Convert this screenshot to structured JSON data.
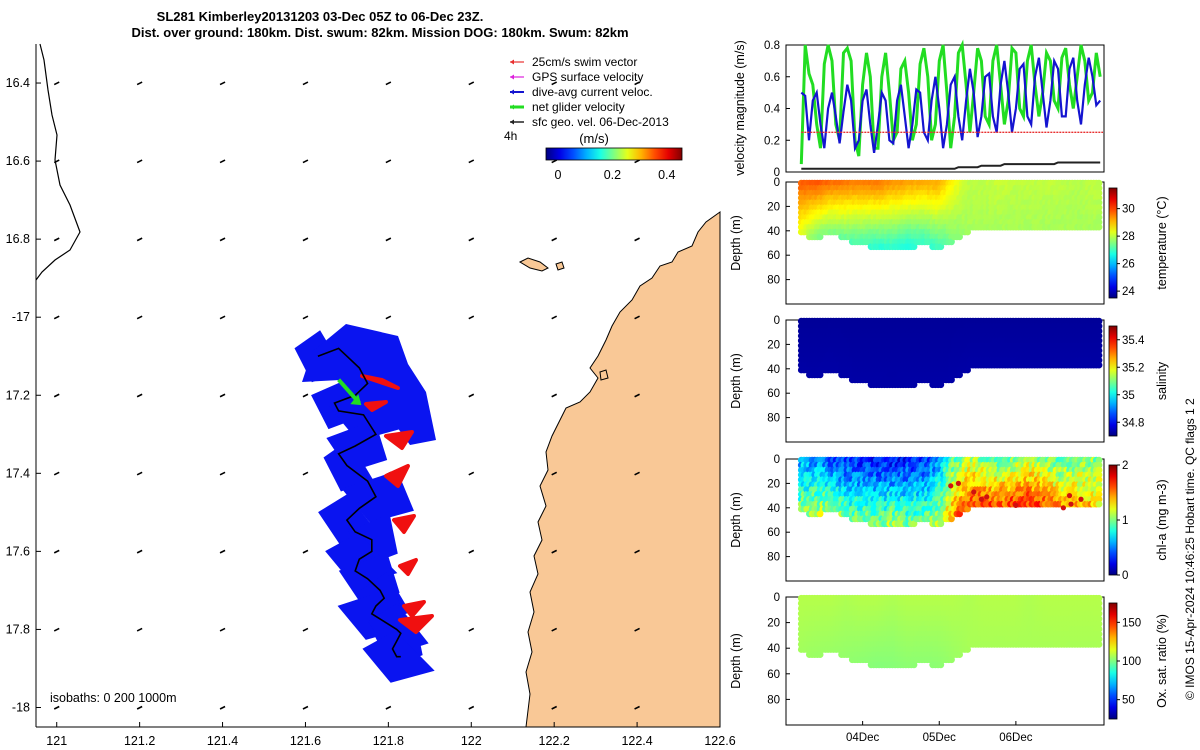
{
  "title": {
    "line1": "SL281 Kimberley20131203 03-Dec 05Z to 06-Dec 23Z.",
    "line2": "Dist. over ground: 180km. Dist. swum: 82km. Mission DOG: 180km. Swum: 82km"
  },
  "credit": "© IMOS 15-Apr-2024 10:46:25 Hobart time. QC flags 1  2",
  "isobaths_label": "isobaths: 0   200  1000m",
  "colors": {
    "land": "#f9c896",
    "glider_patch": "#0a14f0",
    "glider_red": "#f01010",
    "net_velocity": "#22dd22",
    "dive_avg": "#1414d0",
    "swim": "#e83030",
    "gps": "#dd22dd",
    "sfc_geo": "#222222"
  },
  "chart_data": [
    {
      "type": "scatter",
      "panel": "map",
      "xlim": [
        120.95,
        122.6
      ],
      "ylim": [
        -18.05,
        -16.3
      ],
      "xticks": [
        121,
        121.2,
        121.4,
        121.6,
        121.8,
        122,
        122.2,
        122.4,
        122.6
      ],
      "xtick_labels": [
        "121",
        "121.2",
        "121.4",
        "121.6",
        "121.8",
        "122",
        "122.2",
        "122.4",
        "122.6"
      ],
      "yticks": [
        -16.4,
        -16.6,
        -16.8,
        -17,
        -17.2,
        -17.4,
        -17.6,
        -17.8,
        -18
      ],
      "ytick_labels": [
        "16.4",
        "16.6",
        "16.8",
        "-17",
        "17.2",
        "17.4",
        "17.6",
        "17.8",
        "-18"
      ],
      "legend": {
        "position": "top-right",
        "entries": [
          "25cm/s swim vector",
          "GPS surface velocity",
          "dive-avg current veloc.",
          "net glider velocity",
          "sfc geo. vel. 06-Dec-2013"
        ]
      },
      "track_label": "4h",
      "colorbar": {
        "label": "(m/s)",
        "ticks": [
          0,
          0.2,
          0.4
        ],
        "tick_labels": [
          "0",
          "0.2",
          "0.4"
        ],
        "range": [
          0,
          0.5
        ]
      },
      "glider_track": {
        "lon": [
          121.63,
          121.68,
          121.7,
          121.73,
          121.75,
          121.72,
          121.67,
          121.68,
          121.74,
          121.77,
          121.72,
          121.68,
          121.7,
          121.75,
          121.77,
          121.73,
          121.7,
          121.72,
          121.76,
          121.76,
          121.73,
          121.72,
          121.75,
          121.78,
          121.79,
          121.77,
          121.76,
          121.79,
          121.82,
          121.83,
          121.82,
          121.81,
          121.82,
          121.83
        ],
        "lat": [
          -17.1,
          -17.08,
          -17.1,
          -17.13,
          -17.17,
          -17.2,
          -17.22,
          -17.24,
          -17.25,
          -17.3,
          -17.33,
          -17.35,
          -17.38,
          -17.42,
          -17.46,
          -17.49,
          -17.52,
          -17.55,
          -17.57,
          -17.6,
          -17.62,
          -17.65,
          -17.67,
          -17.7,
          -17.72,
          -17.74,
          -17.76,
          -17.78,
          -17.8,
          -17.81,
          -17.83,
          -17.85,
          -17.87,
          -17.87
        ]
      },
      "net_velocity_vector": {
        "from": [
          121.68,
          -17.16
        ],
        "to": [
          121.73,
          -17.22
        ]
      },
      "current_vector_grid": {
        "lon": [
          121,
          121.2,
          121.4,
          121.6,
          121.8,
          122,
          122.2,
          122.4
        ],
        "lat": [
          -16.4,
          -16.6,
          -16.8,
          -17,
          -17.2,
          -17.4,
          -17.6,
          -17.8,
          -18
        ]
      }
    },
    {
      "type": "line",
      "panel": "velocity",
      "ylabel": "velocity magnitude (m/s)",
      "ylim": [
        0,
        0.8
      ],
      "yticks": [
        0,
        0.2,
        0.4,
        0.6,
        0.8
      ],
      "ytick_labels": [
        "0",
        "0.2",
        "0.4",
        "0.6",
        "0.8"
      ],
      "xlim": [
        3.0,
        7.15
      ],
      "x": [
        3.2,
        3.25,
        3.3,
        3.35,
        3.4,
        3.45,
        3.5,
        3.55,
        3.6,
        3.65,
        3.7,
        3.75,
        3.8,
        3.85,
        3.9,
        3.95,
        4.0,
        4.05,
        4.1,
        4.15,
        4.2,
        4.25,
        4.3,
        4.35,
        4.4,
        4.45,
        4.5,
        4.55,
        4.6,
        4.65,
        4.7,
        4.75,
        4.8,
        4.85,
        4.9,
        4.95,
        5.0,
        5.05,
        5.1,
        5.15,
        5.2,
        5.25,
        5.3,
        5.35,
        5.4,
        5.45,
        5.5,
        5.55,
        5.6,
        5.65,
        5.7,
        5.75,
        5.8,
        5.85,
        5.9,
        5.95,
        6.0,
        6.05,
        6.1,
        6.15,
        6.2,
        6.25,
        6.3,
        6.35,
        6.4,
        6.45,
        6.5,
        6.55,
        6.6,
        6.65,
        6.7,
        6.75,
        6.8,
        6.85,
        6.9,
        6.95,
        7.0,
        7.05,
        7.1
      ],
      "series": [
        {
          "name": "net glider velocity",
          "color": "#22dd22",
          "values": [
            0.05,
            0.8,
            0.62,
            0.55,
            0.3,
            0.15,
            0.68,
            0.8,
            0.7,
            0.3,
            0.2,
            0.75,
            0.78,
            0.7,
            0.2,
            0.1,
            0.55,
            0.75,
            0.6,
            0.15,
            0.15,
            0.6,
            0.75,
            0.5,
            0.2,
            0.25,
            0.65,
            0.7,
            0.5,
            0.2,
            0.3,
            0.68,
            0.78,
            0.6,
            0.2,
            0.3,
            0.7,
            0.8,
            0.5,
            0.15,
            0.35,
            0.75,
            0.8,
            0.55,
            0.25,
            0.5,
            0.78,
            0.7,
            0.35,
            0.3,
            0.7,
            0.8,
            0.55,
            0.3,
            0.45,
            0.78,
            0.75,
            0.4,
            0.35,
            0.7,
            0.8,
            0.55,
            0.35,
            0.5,
            0.75,
            0.7,
            0.45,
            0.4,
            0.72,
            0.78,
            0.55,
            0.4,
            0.6,
            0.8,
            0.7,
            0.45,
            0.5,
            0.75,
            0.6
          ]
        },
        {
          "name": "dive-avg current veloc.",
          "color": "#1414d0",
          "values": [
            0.5,
            0.48,
            0.2,
            0.45,
            0.5,
            0.3,
            0.15,
            0.4,
            0.5,
            0.35,
            0.18,
            0.38,
            0.55,
            0.45,
            0.15,
            0.2,
            0.45,
            0.52,
            0.3,
            0.12,
            0.3,
            0.5,
            0.45,
            0.2,
            0.18,
            0.45,
            0.55,
            0.35,
            0.15,
            0.3,
            0.52,
            0.5,
            0.25,
            0.2,
            0.45,
            0.6,
            0.4,
            0.15,
            0.3,
            0.55,
            0.6,
            0.35,
            0.2,
            0.45,
            0.65,
            0.5,
            0.22,
            0.35,
            0.6,
            0.62,
            0.35,
            0.25,
            0.55,
            0.7,
            0.5,
            0.25,
            0.4,
            0.65,
            0.68,
            0.35,
            0.3,
            0.6,
            0.72,
            0.5,
            0.28,
            0.45,
            0.7,
            0.65,
            0.35,
            0.35,
            0.65,
            0.72,
            0.45,
            0.3,
            0.55,
            0.72,
            0.6,
            0.42,
            0.45
          ]
        },
        {
          "name": "25cm/s swim vector",
          "color": "#e83030",
          "constant": 0.25
        },
        {
          "name": "sfc geo. vel. 06-Dec-2013",
          "color": "#222222",
          "values": [
            0.02,
            0.02,
            0.02,
            0.02,
            0.02,
            0.02,
            0.02,
            0.02,
            0.02,
            0.02,
            0.02,
            0.02,
            0.02,
            0.02,
            0.02,
            0.02,
            0.02,
            0.02,
            0.02,
            0.02,
            0.02,
            0.02,
            0.02,
            0.02,
            0.02,
            0.02,
            0.02,
            0.02,
            0.02,
            0.02,
            0.02,
            0.02,
            0.02,
            0.02,
            0.02,
            0.02,
            0.02,
            0.02,
            0.02,
            0.02,
            0.02,
            0.03,
            0.03,
            0.03,
            0.03,
            0.03,
            0.03,
            0.04,
            0.04,
            0.04,
            0.04,
            0.04,
            0.04,
            0.05,
            0.05,
            0.05,
            0.05,
            0.05,
            0.05,
            0.05,
            0.05,
            0.05,
            0.05,
            0.05,
            0.05,
            0.05,
            0.05,
            0.06,
            0.06,
            0.06,
            0.06,
            0.06,
            0.06,
            0.06,
            0.06,
            0.06,
            0.06,
            0.06,
            0.06
          ]
        }
      ]
    },
    {
      "type": "heatmap",
      "panel": "temperature",
      "ylabel": "Depth (m)",
      "ylim": [
        100,
        0
      ],
      "yticks": [
        0,
        20,
        40,
        60,
        80
      ],
      "ytick_labels": [
        "0",
        "20",
        "40",
        "60",
        "80"
      ],
      "colorbar_label": "temperature (°C)",
      "colorbar_range": [
        23.5,
        31.5
      ],
      "colorbar_ticks": [
        24,
        26,
        28,
        30
      ],
      "colorbar_tick_labels": [
        "24",
        "26",
        "28",
        "30"
      ],
      "x": [
        3.2,
        3.4,
        3.6,
        3.8,
        4.0,
        4.2,
        4.4,
        4.6,
        4.8,
        5.0,
        5.2,
        5.4,
        5.6,
        5.8,
        6.0,
        6.2,
        6.4,
        6.6,
        6.8,
        7.0,
        7.1
      ],
      "depth_max": [
        44,
        46,
        42,
        48,
        52,
        54,
        55,
        54,
        52,
        54,
        48,
        40,
        40,
        39,
        40,
        41,
        40,
        41,
        40,
        40,
        41
      ],
      "surface_value": [
        29.8,
        29.9,
        29.7,
        29.6,
        29.5,
        29.6,
        29.4,
        29.3,
        29.2,
        29.2,
        28.5,
        28.0,
        28.0,
        28.1,
        28.0,
        28.0,
        28.0,
        28.0,
        27.9,
        28.0,
        28.0
      ],
      "bottom_value": [
        28.2,
        27.5,
        27.4,
        27.2,
        27.0,
        26.8,
        26.8,
        26.7,
        26.8,
        27.0,
        27.5,
        27.8,
        27.8,
        27.8,
        27.8,
        27.8,
        27.8,
        27.8,
        27.8,
        27.8,
        27.8
      ]
    },
    {
      "type": "heatmap",
      "panel": "salinity",
      "ylabel": "Depth (m)",
      "ylim": [
        100,
        0
      ],
      "yticks": [
        0,
        20,
        40,
        60,
        80
      ],
      "ytick_labels": [
        "0",
        "20",
        "40",
        "60",
        "80"
      ],
      "colorbar_label": "salinity",
      "colorbar_range": [
        34.7,
        35.5
      ],
      "colorbar_ticks": [
        34.8,
        35,
        35.2,
        35.4
      ],
      "colorbar_tick_labels": [
        "34.8",
        "35",
        "35.2",
        "35.4"
      ],
      "x": [
        3.2,
        3.4,
        3.6,
        3.8,
        4.0,
        4.2,
        4.4,
        4.6,
        4.8,
        5.0,
        5.2,
        5.4,
        5.6,
        5.8,
        6.0,
        6.2,
        6.4,
        6.6,
        6.8,
        7.0,
        7.1
      ],
      "depth_max": [
        44,
        46,
        42,
        48,
        52,
        54,
        55,
        54,
        52,
        54,
        48,
        40,
        40,
        39,
        40,
        41,
        40,
        41,
        40,
        40,
        41
      ],
      "surface_value": [
        34.72,
        34.72,
        34.72,
        34.72,
        34.72,
        34.72,
        34.72,
        34.72,
        34.72,
        34.72,
        34.72,
        34.72,
        34.72,
        34.72,
        34.72,
        34.72,
        34.72,
        34.72,
        34.72,
        34.72,
        34.72
      ],
      "bottom_value": [
        34.73,
        34.73,
        34.73,
        34.73,
        34.73,
        34.73,
        34.73,
        34.73,
        34.73,
        34.73,
        34.73,
        34.73,
        34.73,
        34.73,
        34.73,
        34.73,
        34.73,
        34.73,
        34.73,
        34.73,
        34.73
      ]
    },
    {
      "type": "heatmap",
      "panel": "chlorophyll",
      "ylabel": "Depth (m)",
      "ylim": [
        100,
        0
      ],
      "yticks": [
        0,
        20,
        40,
        60,
        80
      ],
      "ytick_labels": [
        "0",
        "20",
        "40",
        "60",
        "80"
      ],
      "colorbar_label": "chl-a (mg m-3)",
      "colorbar_range": [
        0,
        2
      ],
      "colorbar_ticks": [
        0,
        1,
        2
      ],
      "colorbar_tick_labels": [
        "0",
        "1",
        "2"
      ],
      "x": [
        3.2,
        3.4,
        3.6,
        3.8,
        4.0,
        4.2,
        4.4,
        4.6,
        4.8,
        5.0,
        5.2,
        5.4,
        5.6,
        5.8,
        6.0,
        6.2,
        6.4,
        6.6,
        6.8,
        7.0,
        7.1
      ],
      "depth_max": [
        44,
        46,
        42,
        48,
        52,
        54,
        55,
        54,
        52,
        54,
        48,
        40,
        40,
        39,
        40,
        41,
        40,
        41,
        40,
        40,
        41
      ],
      "surface_value": [
        0.6,
        0.5,
        0.4,
        0.3,
        0.3,
        0.25,
        0.25,
        0.3,
        0.3,
        0.5,
        0.9,
        1.1,
        1.0,
        0.9,
        1.0,
        1.1,
        1.0,
        0.9,
        1.0,
        1.0,
        1.0
      ],
      "bottom_value": [
        1.0,
        1.1,
        1.1,
        1.0,
        1.0,
        1.0,
        1.1,
        1.0,
        1.0,
        1.1,
        1.5,
        1.6,
        1.7,
        1.6,
        1.7,
        1.7,
        1.6,
        1.5,
        1.4,
        1.4,
        1.3
      ]
    },
    {
      "type": "heatmap",
      "panel": "oxygen",
      "ylabel": "Depth (m)",
      "ylim": [
        100,
        0
      ],
      "yticks": [
        0,
        20,
        40,
        60,
        80
      ],
      "ytick_labels": [
        "0",
        "20",
        "40",
        "60",
        "80"
      ],
      "colorbar_label": "Ox. sat. ratio (%)",
      "colorbar_range": [
        25,
        175
      ],
      "colorbar_ticks": [
        50,
        100,
        150
      ],
      "colorbar_tick_labels": [
        "50",
        "100",
        "150"
      ],
      "x": [
        3.2,
        3.4,
        3.6,
        3.8,
        4.0,
        4.2,
        4.4,
        4.6,
        4.8,
        5.0,
        5.2,
        5.4,
        5.6,
        5.8,
        6.0,
        6.2,
        6.4,
        6.6,
        6.8,
        7.0,
        7.1
      ],
      "depth_max": [
        44,
        46,
        42,
        48,
        52,
        54,
        55,
        54,
        52,
        54,
        48,
        40,
        40,
        39,
        40,
        41,
        40,
        41,
        40,
        40,
        41
      ],
      "surface_value": [
        108,
        108,
        108,
        107,
        108,
        108,
        107,
        108,
        108,
        108,
        108,
        107,
        108,
        108,
        108,
        107,
        108,
        108,
        108,
        108,
        108
      ],
      "bottom_value": [
        105,
        104,
        104,
        103,
        102,
        101,
        101,
        102,
        102,
        102,
        104,
        106,
        106,
        106,
        106,
        106,
        106,
        106,
        106,
        106,
        106
      ],
      "xticks": [
        4,
        5,
        6
      ],
      "xtick_labels": [
        "04Dec",
        "05Dec",
        "06Dec"
      ]
    }
  ]
}
